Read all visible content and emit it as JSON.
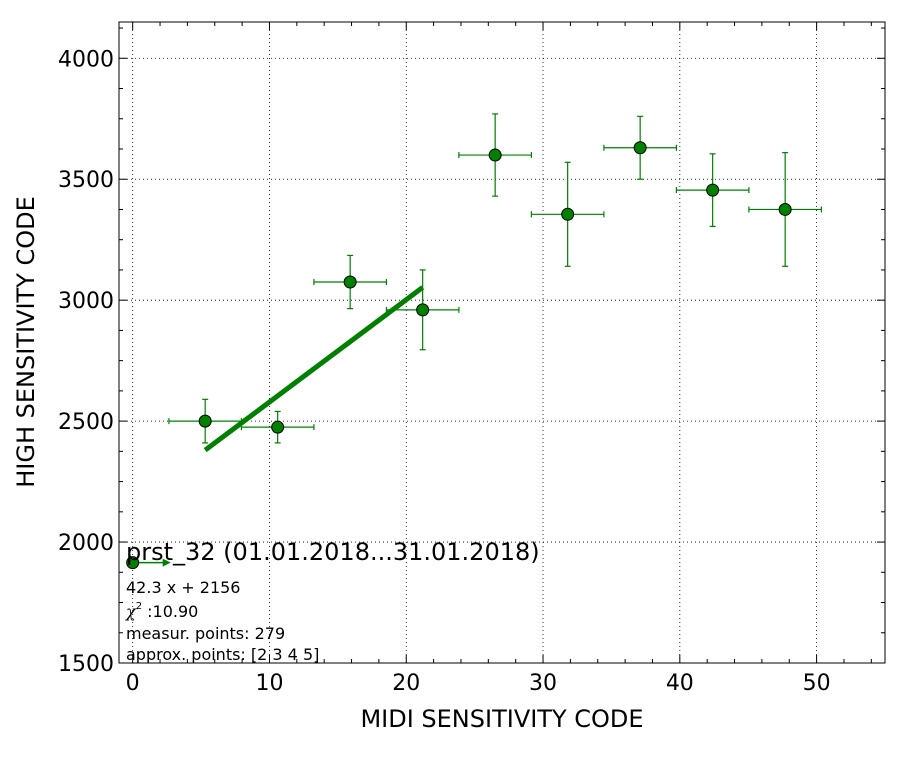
{
  "chart_data": {
    "type": "scatter",
    "title": "prst_32 (01.01.2018...31.01.2018)",
    "xlabel": "MIDI SENSITIVITY CODE",
    "ylabel": "HIGH SENSITIVITY CODE",
    "xlim": [
      -1,
      55
    ],
    "ylim": [
      1500,
      4150
    ],
    "xticks": [
      0,
      10,
      20,
      30,
      40,
      50
    ],
    "yticks": [
      1500,
      2000,
      2500,
      3000,
      3500,
      4000
    ],
    "xtick_labels": [
      "0",
      "10",
      "20",
      "30",
      "40",
      "50"
    ],
    "ytick_labels": [
      "1500",
      "2000",
      "2500",
      "3000",
      "3500",
      "4000"
    ],
    "grid": true,
    "color": "#008000",
    "points": [
      {
        "x": 5.3,
        "y": 2500,
        "xerr": 2.65,
        "yerr": 90
      },
      {
        "x": 10.6,
        "y": 2475,
        "xerr": 2.65,
        "yerr": 65
      },
      {
        "x": 15.9,
        "y": 3075,
        "xerr": 2.65,
        "yerr": 110
      },
      {
        "x": 21.2,
        "y": 2960,
        "xerr": 2.65,
        "yerr": 165
      },
      {
        "x": 26.5,
        "y": 3600,
        "xerr": 2.65,
        "yerr": 170
      },
      {
        "x": 31.8,
        "y": 3355,
        "xerr": 2.65,
        "yerr": 215
      },
      {
        "x": 37.1,
        "y": 3630,
        "xerr": 2.65,
        "yerr": 130
      },
      {
        "x": 42.4,
        "y": 3455,
        "xerr": 2.65,
        "yerr": 150
      },
      {
        "x": 47.7,
        "y": 3375,
        "xerr": 2.65,
        "yerr": 235
      }
    ],
    "fit": {
      "slope": 42.3,
      "intercept": 2156,
      "x_start": 5.3,
      "x_end": 21.2
    },
    "legend_marker": {
      "x": 0,
      "y": 1915
    },
    "annotations": {
      "equation": "42.3 x + 2156",
      "chi2_symbol": "χ",
      "chi2_power": "2",
      "chi2_value": " :10.90",
      "measur_points": "measur. points: 279",
      "approx_points": "approx. points: [2 3 4 5]"
    }
  }
}
